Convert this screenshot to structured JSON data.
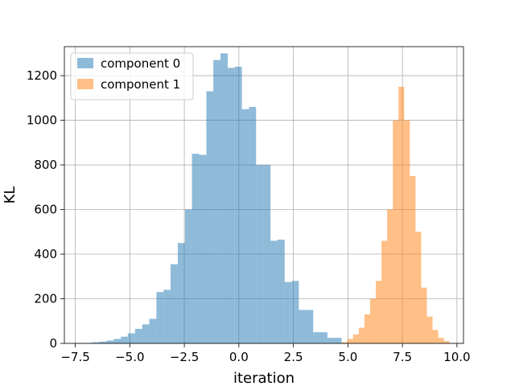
{
  "chart_data": {
    "type": "bar",
    "title": "",
    "xlabel": "iteration",
    "ylabel": "KL",
    "xlim": [
      -8.0,
      10.3
    ],
    "ylim": [
      0,
      1330
    ],
    "grid": true,
    "legend_position": "top-left",
    "x_ticks": [
      -7.5,
      -5.0,
      -2.5,
      0.0,
      2.5,
      5.0,
      7.5,
      10.0
    ],
    "x_tick_labels": [
      "−7.5",
      "−5.0",
      "−2.5",
      "0.0",
      "2.5",
      "5.0",
      "7.5",
      "10.0"
    ],
    "y_ticks": [
      0,
      200,
      400,
      600,
      800,
      1000,
      1200
    ],
    "y_tick_labels": [
      "0",
      "200",
      "400",
      "600",
      "800",
      "1000",
      "1200"
    ],
    "series": [
      {
        "name": "component 0",
        "color": "#1f77b4",
        "opacity": 0.5,
        "bin_edges": [
          -7.05,
          -6.72,
          -6.39,
          -6.07,
          -5.74,
          -5.41,
          -5.09,
          -4.76,
          -4.43,
          -4.11,
          -3.78,
          -3.45,
          -3.13,
          -2.8,
          -2.47,
          -2.15,
          -1.82,
          -1.49,
          -1.17,
          -0.84,
          -0.51,
          -0.19,
          0.14,
          0.47,
          0.79,
          1.12,
          1.45,
          1.77,
          2.1,
          2.43,
          2.75,
          3.08,
          3.41,
          3.73,
          4.06,
          4.39,
          4.71
        ],
        "values": [
          2,
          5,
          8,
          13,
          20,
          30,
          45,
          65,
          85,
          110,
          230,
          240,
          355,
          450,
          600,
          850,
          845,
          1130,
          1270,
          1300,
          1235,
          1240,
          1050,
          1060,
          800,
          800,
          460,
          465,
          275,
          280,
          150,
          150,
          50,
          50,
          25,
          25
        ]
      },
      {
        "name": "component 1",
        "color": "#ff7f0e",
        "opacity": 0.5,
        "bin_edges": [
          4.72,
          4.98,
          5.24,
          5.5,
          5.76,
          6.02,
          6.28,
          6.54,
          6.8,
          7.06,
          7.32,
          7.58,
          7.84,
          8.1,
          8.36,
          8.62,
          8.88,
          9.14,
          9.4,
          9.66
        ],
        "values": [
          5,
          20,
          40,
          70,
          130,
          200,
          280,
          460,
          600,
          1000,
          1150,
          1000,
          750,
          500,
          250,
          120,
          60,
          25,
          10
        ]
      }
    ]
  }
}
